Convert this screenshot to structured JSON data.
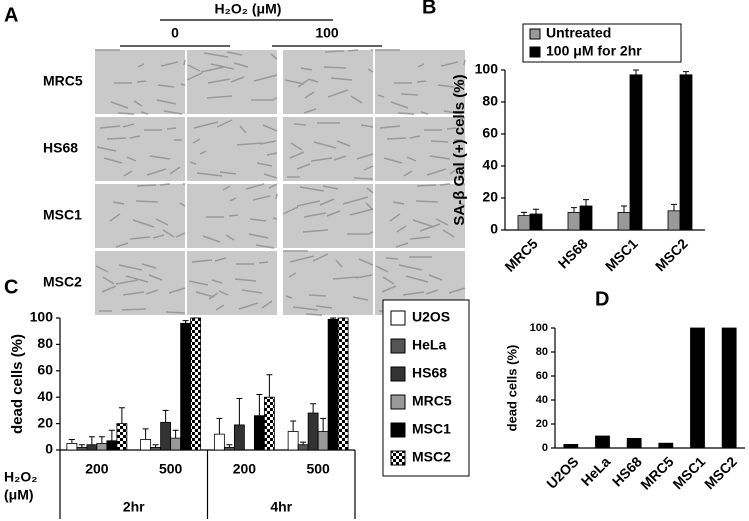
{
  "figure_a": {
    "panel_label": "A",
    "header": "H₂O₂ (μM)",
    "columns": [
      "0",
      "100"
    ],
    "rows": [
      "MRC5",
      "HS68",
      "MSC1",
      "MSC2"
    ]
  },
  "chart_data": [
    {
      "type": "bar",
      "panel_label": "B",
      "ylabel": "SA-β Gal (+) cells (%)",
      "categories": [
        "MRC5",
        "HS68",
        "MSC1",
        "MSC2"
      ],
      "series": [
        {
          "name": "Untreated",
          "color": "#999999",
          "values": [
            9,
            11,
            11,
            12
          ],
          "errors": [
            2,
            3,
            4,
            4
          ]
        },
        {
          "name": "100 μM for 2hr",
          "color": "#000000",
          "values": [
            10,
            15,
            97,
            97
          ],
          "errors": [
            3,
            4,
            3,
            2
          ]
        }
      ],
      "ylim": [
        0,
        100
      ],
      "yticks": [
        0,
        20,
        40,
        60,
        80,
        100
      ],
      "legend": "top"
    },
    {
      "type": "bar",
      "panel_label": "C",
      "ylabel": "dead cells (%)",
      "categories": [
        "200",
        "500",
        "200",
        "500"
      ],
      "groups": [
        "2hr",
        "4hr"
      ],
      "x_label": [
        "H₂O₂",
        "(μM)"
      ],
      "series": [
        {
          "name": "U2OS",
          "color": "#ffffff",
          "values": [
            5,
            8,
            12,
            14
          ],
          "errors": [
            3,
            8,
            12,
            8
          ]
        },
        {
          "name": "HeLa",
          "color": "#555555",
          "values": [
            2,
            2,
            2,
            4
          ],
          "errors": [
            2,
            2,
            2,
            2
          ]
        },
        {
          "name": "HS68",
          "color": "#333333",
          "values": [
            4,
            21,
            19,
            28
          ],
          "errors": [
            6,
            9,
            20,
            7
          ]
        },
        {
          "name": "MRC5",
          "color": "#999999",
          "values": [
            5,
            9,
            0,
            14
          ],
          "errors": [
            5,
            6,
            0,
            10
          ]
        },
        {
          "name": "MSC1",
          "color": "#000000",
          "values": [
            7,
            96,
            26,
            99
          ],
          "errors": [
            8,
            2,
            16,
            1
          ]
        },
        {
          "name": "MSC2",
          "color": "#000000",
          "pattern": "checkerboard",
          "values": [
            20,
            100,
            40,
            100
          ],
          "errors": [
            12,
            0,
            17,
            0
          ]
        }
      ],
      "ylim": [
        0,
        100
      ],
      "yticks": [
        0,
        20,
        40,
        60,
        80,
        100
      ],
      "legend": "right"
    },
    {
      "type": "bar",
      "panel_label": "D",
      "ylabel": "dead cells (%)",
      "categories": [
        "U2OS",
        "HeLa",
        "HS68",
        "MRC5",
        "MSC1",
        "MSC2"
      ],
      "values": [
        3,
        10,
        8,
        4,
        100,
        100
      ],
      "color": "#000000",
      "ylim": [
        0,
        100
      ],
      "yticks": [
        0,
        20,
        40,
        60,
        80,
        100
      ]
    }
  ]
}
